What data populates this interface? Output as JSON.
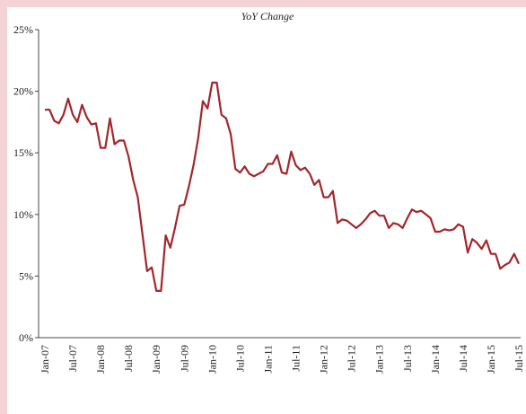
{
  "chart_data": {
    "type": "line",
    "title": "YoY Change",
    "categories": [
      "Jan-07",
      null,
      null,
      null,
      null,
      null,
      "Jul-07",
      null,
      null,
      null,
      null,
      null,
      "Jan-08",
      null,
      null,
      null,
      null,
      null,
      "Jul-08",
      null,
      null,
      null,
      null,
      null,
      "Jan-09",
      null,
      null,
      null,
      null,
      null,
      "Jul-09",
      null,
      null,
      null,
      null,
      null,
      "Jan-10",
      null,
      null,
      null,
      null,
      null,
      "Jul-10",
      null,
      null,
      null,
      null,
      null,
      "Jan-11",
      null,
      null,
      null,
      null,
      null,
      "Jul-11",
      null,
      null,
      null,
      null,
      null,
      "Jan-12",
      null,
      null,
      null,
      null,
      null,
      "Jul-12",
      null,
      null,
      null,
      null,
      null,
      "Jan-13",
      null,
      null,
      null,
      null,
      null,
      "Jul-13",
      null,
      null,
      null,
      null,
      null,
      "Jan-14",
      null,
      null,
      null,
      null,
      null,
      "Jul-14",
      null,
      null,
      null,
      null,
      null,
      "Jan-15",
      null,
      null,
      null,
      null,
      null,
      "Jul-15"
    ],
    "series": [
      {
        "color": "#a3262a",
        "values": [
          18.5,
          18.5,
          17.6,
          17.4,
          18.1,
          19.4,
          18.1,
          17.5,
          18.9,
          17.9,
          17.3,
          17.4,
          15.4,
          15.4,
          17.8,
          15.7,
          16.0,
          16.0,
          14.7,
          12.8,
          11.4,
          8.4,
          5.4,
          5.7,
          3.8,
          3.8,
          8.3,
          7.3,
          8.9,
          10.7,
          10.8,
          12.3,
          14.0,
          16.2,
          19.2,
          18.6,
          20.7,
          20.7,
          18.1,
          17.8,
          16.5,
          13.7,
          13.4,
          13.9,
          13.3,
          13.1,
          13.3,
          13.5,
          14.1,
          14.1,
          14.8,
          13.4,
          13.3,
          15.1,
          14.0,
          13.6,
          13.8,
          13.3,
          12.4,
          12.8,
          11.4,
          11.4,
          11.9,
          9.3,
          9.6,
          9.5,
          9.2,
          8.9,
          9.2,
          9.6,
          10.1,
          10.3,
          9.9,
          9.9,
          8.9,
          9.3,
          9.2,
          8.9,
          9.7,
          10.4,
          10.2,
          10.3,
          10.0,
          9.7,
          8.6,
          8.6,
          8.8,
          8.7,
          8.8,
          9.2,
          9.0,
          6.9,
          8.0,
          7.7,
          7.2,
          7.9,
          6.8,
          6.8,
          5.6,
          5.9,
          6.1,
          6.8,
          6.0
        ]
      }
    ],
    "ylim": [
      0,
      25
    ],
    "yticks": [
      {
        "value": 0,
        "label": "0%"
      },
      {
        "value": 5,
        "label": "5%"
      },
      {
        "value": 10,
        "label": "10%"
      },
      {
        "value": 15,
        "label": "15%"
      },
      {
        "value": 20,
        "label": "20%"
      },
      {
        "value": 25,
        "label": "25%"
      }
    ]
  }
}
